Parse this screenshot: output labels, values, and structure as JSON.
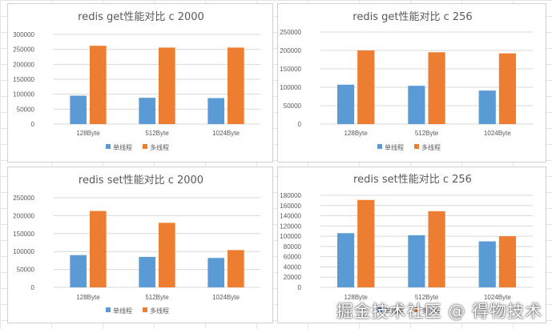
{
  "colors": {
    "single": "#5b9bd5",
    "multi": "#ed7d31",
    "grid": "#d9d9d9",
    "text": "#595959"
  },
  "legend": {
    "single": "单线程",
    "multi": "多线程"
  },
  "watermark": "掘金技术社区 @ 得物技术",
  "chart_data": [
    {
      "type": "bar",
      "title": "redis get性能对比 c 2000",
      "categories": [
        "128Byte",
        "512Byte",
        "1024Byte"
      ],
      "series": [
        {
          "name": "单线程",
          "values": [
            95000,
            88000,
            87000
          ]
        },
        {
          "name": "多线程",
          "values": [
            262000,
            256000,
            256000
          ]
        }
      ],
      "ylim": [
        0,
        300000
      ],
      "ystep": 50000,
      "grid": true,
      "legend_position": "bottom"
    },
    {
      "type": "bar",
      "title": "redis get性能对比 c 256",
      "categories": [
        "128Byte",
        "512Byte",
        "1024Byte"
      ],
      "series": [
        {
          "name": "单线程",
          "values": [
            107000,
            104000,
            91000
          ]
        },
        {
          "name": "多线程",
          "values": [
            200000,
            195000,
            192000
          ]
        }
      ],
      "ylim": [
        0,
        250000
      ],
      "ystep": 50000,
      "grid": true,
      "legend_position": "bottom"
    },
    {
      "type": "bar",
      "title": "redis set性能对比 c 2000",
      "categories": [
        "128Byte",
        "512Byte",
        "1024Byte"
      ],
      "series": [
        {
          "name": "单线程",
          "values": [
            90000,
            85000,
            82000
          ]
        },
        {
          "name": "多线程",
          "values": [
            213000,
            180000,
            104000
          ]
        }
      ],
      "ylim": [
        0,
        250000
      ],
      "ystep": 50000,
      "grid": true,
      "legend_position": "bottom"
    },
    {
      "type": "bar",
      "title": "redis set性能对比 c 256",
      "categories": [
        "128Byte",
        "512Byte",
        "1024Byte"
      ],
      "series": [
        {
          "name": "单线程",
          "values": [
            106000,
            102000,
            90000
          ]
        },
        {
          "name": "多线程",
          "values": [
            171000,
            149000,
            100000
          ]
        }
      ],
      "ylim": [
        0,
        180000
      ],
      "ystep": 20000,
      "grid": true,
      "legend_position": "bottom"
    }
  ]
}
